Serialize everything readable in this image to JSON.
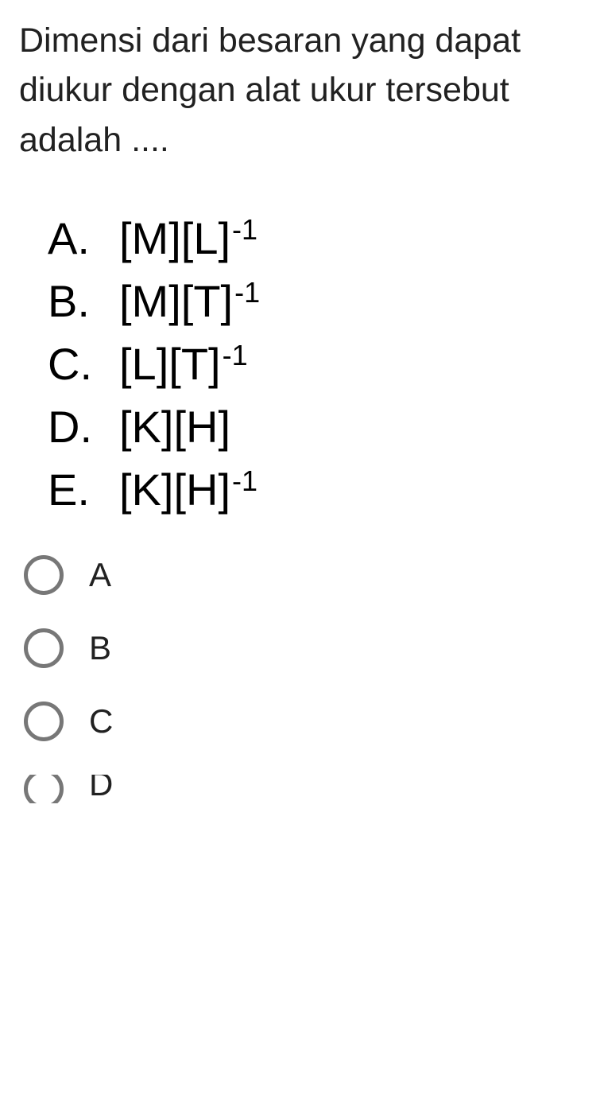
{
  "question": {
    "text": "Dimensi dari besaran yang dapat diukur dengan alat ukur tersebut adalah ....",
    "font_size": 43,
    "color": "#212121"
  },
  "options": [
    {
      "letter": "A.",
      "base": "[M][L]",
      "exponent": "-1"
    },
    {
      "letter": "B.",
      "base": "[M][T]",
      "exponent": "-1"
    },
    {
      "letter": "C.",
      "base": "[L][T]",
      "exponent": "-1"
    },
    {
      "letter": "D.",
      "base": "[K][H]",
      "exponent": ""
    },
    {
      "letter": "E.",
      "base": "[K][H]",
      "exponent": "-1"
    }
  ],
  "radios": [
    {
      "label": "A"
    },
    {
      "label": "B"
    },
    {
      "label": "C"
    },
    {
      "label": "D"
    }
  ],
  "styling": {
    "background_color": "#ffffff",
    "text_color": "#000000",
    "radio_border_color": "#777777",
    "option_font_size": 56,
    "superscript_font_size": 36,
    "radio_label_font_size": 42,
    "radio_diameter": 50,
    "radio_border_width": 5
  }
}
